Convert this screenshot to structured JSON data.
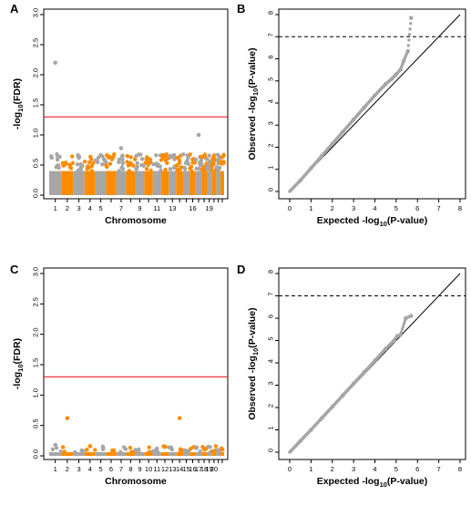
{
  "colors": {
    "gray": "#a6a6a6",
    "orange": "#ff8c00",
    "threshold_red": "#e8202a",
    "identity_line": "#000000",
    "dashed_line": "#000000"
  },
  "chart_data": [
    {
      "panel": "A",
      "type": "scatter",
      "subtype": "manhattan",
      "xlabel": "Chromosome",
      "ylabel": "-log10(FDR)",
      "ylabel_main": "-log",
      "ylabel_sub": "10",
      "ylabel_tail": "(FDR)",
      "ylim": [
        0,
        3.0
      ],
      "yticks": [
        "0.0",
        "0.5",
        "1.0",
        "1.5",
        "2.0",
        "2.5",
        "3.0"
      ],
      "x_tick_labels": [
        "1",
        "2",
        "3",
        "4",
        "5",
        "7",
        "9",
        "11",
        "13",
        "16",
        "19"
      ],
      "chromosomes": 22,
      "alternating_colors": [
        "gray",
        "orange"
      ],
      "threshold": 1.3,
      "baseline_band": [
        0.0,
        0.4
      ],
      "highlighted_points": [
        {
          "chrom": 1,
          "y": 2.2
        },
        {
          "chrom": 17,
          "y": 1.0
        },
        {
          "chrom": 7,
          "y": 0.78
        },
        {
          "chrom": 3,
          "y": 0.62
        },
        {
          "chrom": 10,
          "y": 0.6
        },
        {
          "chrom": 20,
          "y": 0.62
        }
      ]
    },
    {
      "panel": "B",
      "type": "scatter",
      "subtype": "qq",
      "xlabel": "Expected -log10(P-value)",
      "xlabel_main": "Expected -log",
      "xlabel_sub": "10",
      "xlabel_tail": "(P-value)",
      "ylabel": "Observed -log10(P-value)",
      "ylabel_main": "Observed -log",
      "ylabel_sub": "10",
      "ylabel_tail": "(P-value)",
      "xlim": [
        0,
        8
      ],
      "ylim": [
        0,
        8
      ],
      "xticks": [
        "0",
        "1",
        "2",
        "3",
        "4",
        "5",
        "6",
        "7",
        "8"
      ],
      "yticks": [
        "0",
        "1",
        "2",
        "3",
        "4",
        "5",
        "6",
        "7",
        "8"
      ],
      "threshold_dashed": 7,
      "points": [
        [
          0.5,
          0.5
        ],
        [
          1,
          1.05
        ],
        [
          1.5,
          1.6
        ],
        [
          2,
          2.15
        ],
        [
          2.5,
          2.7
        ],
        [
          3,
          3.25
        ],
        [
          3.5,
          3.8
        ],
        [
          4,
          4.35
        ],
        [
          4.5,
          4.85
        ],
        [
          4.8,
          5.1
        ],
        [
          5.0,
          5.3
        ],
        [
          5.2,
          5.5
        ],
        [
          5.35,
          5.9
        ],
        [
          5.55,
          6.35
        ],
        [
          5.7,
          7.85
        ]
      ]
    },
    {
      "panel": "C",
      "type": "scatter",
      "subtype": "manhattan",
      "xlabel": "Chromosome",
      "ylabel": "-log10(FDR)",
      "ylabel_main": "-log",
      "ylabel_sub": "10",
      "ylabel_tail": "(FDR)",
      "ylim": [
        0,
        3.0
      ],
      "yticks": [
        "0.0",
        "0.5",
        "1.0",
        "1.5",
        "2.0",
        "2.5",
        "3.0"
      ],
      "x_tick_labels": [
        "1",
        "2",
        "3",
        "4",
        "5",
        "6",
        "7",
        "8",
        "9",
        "10",
        "11",
        "12",
        "13",
        "14",
        "15",
        "16",
        "17",
        "18",
        "19",
        "20"
      ],
      "chromosomes": 22,
      "alternating_colors": [
        "gray",
        "orange"
      ],
      "threshold": 1.3,
      "baseline_band": [
        0.0,
        0.06
      ],
      "highlighted_points": [
        {
          "chrom": 2,
          "y": 0.62
        },
        {
          "chrom": 14,
          "y": 0.62
        },
        {
          "chrom": 1,
          "y": 0.18
        },
        {
          "chrom": 4,
          "y": 0.16
        },
        {
          "chrom": 11,
          "y": 0.12
        },
        {
          "chrom": 18,
          "y": 0.12
        }
      ]
    },
    {
      "panel": "D",
      "type": "scatter",
      "subtype": "qq",
      "xlabel": "Expected -log10(P-value)",
      "xlabel_main": "Expected -log",
      "xlabel_sub": "10",
      "xlabel_tail": "(P-value)",
      "ylabel": "Observed -log10(P-value)",
      "ylabel_main": "Observed -log",
      "ylabel_sub": "10",
      "ylabel_tail": "(P-value)",
      "xlim": [
        0,
        8
      ],
      "ylim": [
        0,
        8
      ],
      "xticks": [
        "0",
        "1",
        "2",
        "3",
        "4",
        "5",
        "6",
        "7",
        "8"
      ],
      "yticks": [
        "0",
        "1",
        "2",
        "3",
        "4",
        "5",
        "6",
        "7",
        "8"
      ],
      "threshold_dashed": 7,
      "points": [
        [
          0.5,
          0.5
        ],
        [
          1,
          1.0
        ],
        [
          1.5,
          1.52
        ],
        [
          2,
          2.03
        ],
        [
          2.5,
          2.55
        ],
        [
          3,
          3.07
        ],
        [
          3.5,
          3.58
        ],
        [
          4,
          4.1
        ],
        [
          4.5,
          4.62
        ],
        [
          4.9,
          5.0
        ],
        [
          5.05,
          5.2
        ],
        [
          5.2,
          5.25
        ],
        [
          5.45,
          6.0
        ],
        [
          5.7,
          6.1
        ]
      ]
    }
  ]
}
